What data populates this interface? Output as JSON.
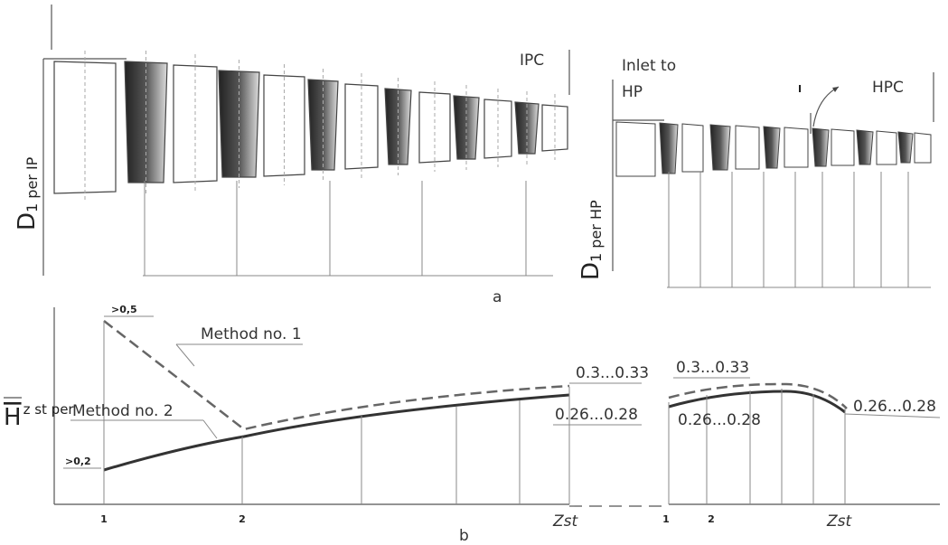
{
  "panel_a": {
    "caption": "a",
    "left": {
      "axis_main": "D",
      "axis_sub": "1 per IP",
      "name": "IPC"
    },
    "right": {
      "axis_main": "D",
      "axis_sub": "1 per HP",
      "inlet_line1": "Inlet to",
      "inlet_line2": "HP",
      "name": "HPC",
      "marker": "I"
    }
  },
  "panel_b": {
    "caption": "b",
    "axis_main": "H",
    "axis_sub": "z st per",
    "method1": "Method no. 1",
    "method2": "Method no. 2",
    "start_high": ">0,5",
    "start_low": ">0,2",
    "ipc_upper": "0.3...0.33",
    "ipc_lower": "0.26...0.28",
    "hpc_upper": "0.3...0.33",
    "hpc_mid": "0.26...0.28",
    "hpc_end": "0.26...0.28",
    "x_labels": [
      {
        "text": "1"
      },
      {
        "text": "2"
      },
      {
        "text": "Z",
        "sub": "st"
      },
      {
        "text": "1"
      },
      {
        "text": "2"
      },
      {
        "text": "Z",
        "sub": "st"
      }
    ]
  }
}
